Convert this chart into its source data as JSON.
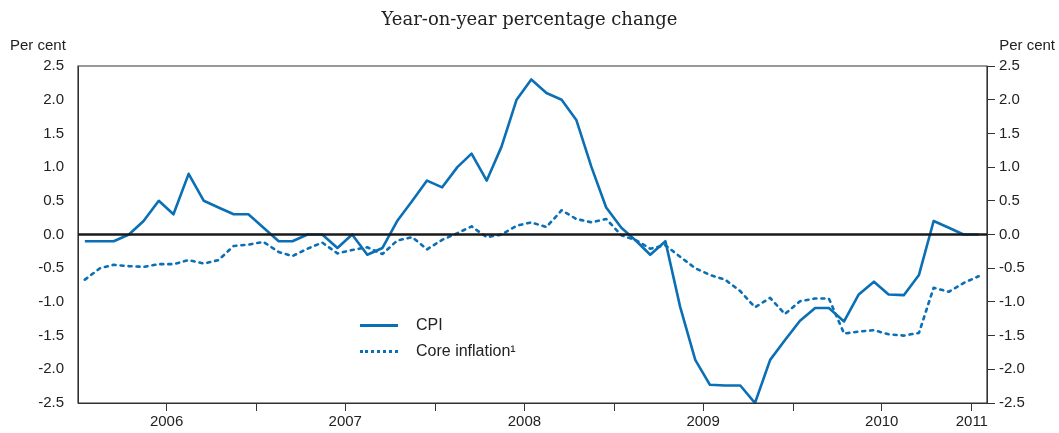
{
  "chart_data": {
    "type": "line",
    "subtitle": "Year-on-year percentage change",
    "ylabel": "Per cent",
    "y2label": "Per cent",
    "x": [
      "2006-01-15",
      "2006-02-15",
      "2006-03-15",
      "2006-04-15",
      "2006-05-15",
      "2006-06-15",
      "2006-07-15",
      "2006-08-15",
      "2006-09-15",
      "2006-10-15",
      "2006-11-15",
      "2006-12-15",
      "2007-01-15",
      "2007-02-15",
      "2007-03-15",
      "2007-04-15",
      "2007-05-15",
      "2007-06-15",
      "2007-07-15",
      "2007-08-15",
      "2007-09-15",
      "2007-10-15",
      "2007-11-15",
      "2007-12-15",
      "2008-01-15",
      "2008-02-15",
      "2008-03-15",
      "2008-04-15",
      "2008-05-15",
      "2008-06-15",
      "2008-07-15",
      "2008-08-15",
      "2008-09-15",
      "2008-10-15",
      "2008-11-15",
      "2008-12-15",
      "2009-01-15",
      "2009-02-15",
      "2009-03-15",
      "2009-04-15",
      "2009-05-15",
      "2009-06-15",
      "2009-07-15",
      "2009-08-15",
      "2009-09-15",
      "2009-10-15",
      "2009-11-15",
      "2009-12-15",
      "2010-01-15",
      "2010-02-15",
      "2010-03-15",
      "2010-04-15",
      "2010-05-15",
      "2010-06-15",
      "2010-07-15",
      "2010-08-15",
      "2010-09-15",
      "2010-10-15",
      "2010-11-15",
      "2010-12-15",
      "2011-01-15"
    ],
    "series": [
      {
        "name": "CPI",
        "color": "#0a6fb5",
        "line_style": "solid",
        "values": [
          -0.1,
          -0.1,
          -0.1,
          0,
          0.2,
          0.5,
          0.3,
          0.9,
          0.5,
          0.4,
          0.3,
          0.3,
          0.1,
          -0.1,
          -0.1,
          0,
          0,
          -0.2,
          0,
          -0.3,
          -0.2,
          0.2,
          0.5,
          0.8,
          0.7,
          1.0,
          1.2,
          0.8,
          1.3,
          2.0,
          2.3,
          2.1,
          2.0,
          1.7,
          1.0,
          0.4,
          0.1,
          -0.1,
          -0.3,
          -0.1,
          -1.07,
          -1.86,
          -2.23,
          -2.24,
          -2.24,
          -2.5,
          -1.86,
          -1.57,
          -1.28,
          -1.09,
          -1.09,
          -1.29,
          -0.89,
          -0.7,
          -0.89,
          -0.9,
          -0.6,
          0.2,
          0.1,
          0,
          0
        ]
      },
      {
        "name": "Core inflation¹",
        "color": "#0a6fb5",
        "line_style": "dotted",
        "values": [
          -0.67,
          -0.5,
          -0.45,
          -0.47,
          -0.48,
          -0.44,
          -0.44,
          -0.38,
          -0.43,
          -0.38,
          -0.17,
          -0.15,
          -0.11,
          -0.26,
          -0.32,
          -0.21,
          -0.12,
          -0.28,
          -0.23,
          -0.19,
          -0.29,
          -0.09,
          -0.04,
          -0.22,
          -0.08,
          0.02,
          0.12,
          -0.04,
          0,
          0.13,
          0.18,
          0.11,
          0.36,
          0.23,
          0.18,
          0.23,
          -0.01,
          -0.09,
          -0.21,
          -0.16,
          -0.33,
          -0.5,
          -0.6,
          -0.67,
          -0.84,
          -1.08,
          -0.94,
          -1.18,
          -0.99,
          -0.95,
          -0.95,
          -1.47,
          -1.44,
          -1.42,
          -1.48,
          -1.5,
          -1.46,
          -0.79,
          -0.85,
          -0.72,
          -0.62
        ]
      }
    ],
    "xlim": [
      "2006-01-01",
      "2011-02-01"
    ],
    "xticks": [
      {
        "value": "2006-07-01",
        "label": "2006"
      },
      {
        "value": "2007-01-01",
        "label": null
      },
      {
        "value": "2007-07-01",
        "label": "2007"
      },
      {
        "value": "2008-01-01",
        "label": null
      },
      {
        "value": "2008-07-01",
        "label": "2008"
      },
      {
        "value": "2009-01-01",
        "label": null
      },
      {
        "value": "2009-07-01",
        "label": "2009"
      },
      {
        "value": "2010-01-01",
        "label": null
      },
      {
        "value": "2010-07-01",
        "label": "2010"
      },
      {
        "value": "2011-01-01",
        "label": "2011"
      }
    ],
    "ylim": [
      -2.5,
      2.5
    ],
    "yticks": [
      {
        "value": -2.5,
        "label": "-2.5"
      },
      {
        "value": -2,
        "label": "-2.0"
      },
      {
        "value": -1.5,
        "label": "-1.5"
      },
      {
        "value": -1,
        "label": "-1.0"
      },
      {
        "value": -0.5,
        "label": "-0.5"
      },
      {
        "value": 0,
        "label": "0.0"
      },
      {
        "value": 0.5,
        "label": "0.5"
      },
      {
        "value": 1,
        "label": "1.0"
      },
      {
        "value": 1.5,
        "label": "1.5"
      },
      {
        "value": 2,
        "label": "2.0"
      },
      {
        "value": 2.5,
        "label": "2.5"
      }
    ],
    "y2lim": [
      -2.5,
      2.5
    ],
    "y2ticks": [
      {
        "value": -2.5,
        "label": "-2.5"
      },
      {
        "value": -2,
        "label": "-2.0"
      },
      {
        "value": -1.5,
        "label": "-1.5"
      },
      {
        "value": -1,
        "label": "-1.0"
      },
      {
        "value": -0.5,
        "label": "-0.5"
      },
      {
        "value": 0,
        "label": "0.0"
      },
      {
        "value": 0.5,
        "label": "0.5"
      },
      {
        "value": 1,
        "label": "1.0"
      },
      {
        "value": 1.5,
        "label": "1.5"
      },
      {
        "value": 2,
        "label": "2.0"
      },
      {
        "value": 2.5,
        "label": "2.5"
      }
    ],
    "ref_lines": [
      {
        "axis": "y",
        "value": 0,
        "color": "#1a1a1a"
      }
    ],
    "grid": false,
    "marker": "none",
    "legend": "bottom left"
  }
}
